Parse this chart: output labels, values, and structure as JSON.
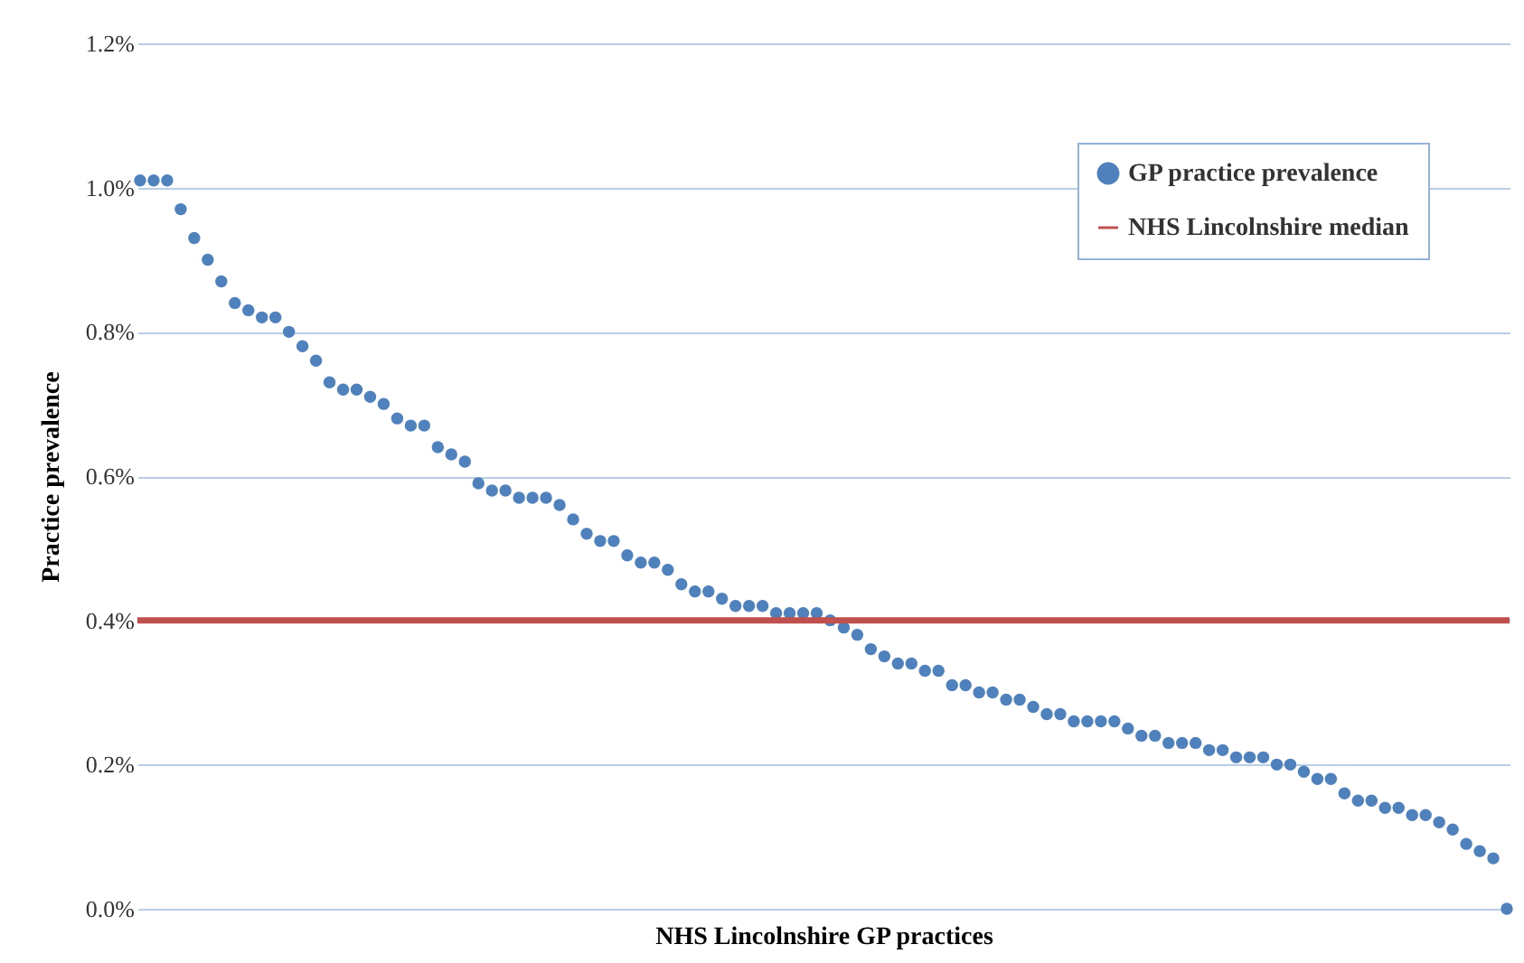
{
  "chart_data": {
    "type": "scatter",
    "xlabel": "NHS Lincolnshire GP practices",
    "ylabel": "Practice prevalence",
    "categories": [
      null,
      null,
      null,
      null,
      null,
      null,
      null,
      null,
      null,
      null,
      null,
      null,
      null,
      null,
      null,
      null,
      null,
      null,
      null,
      null,
      null,
      null,
      null,
      null,
      null,
      null,
      null,
      null,
      null,
      null,
      null,
      null,
      null,
      null,
      null,
      null,
      null,
      null,
      null,
      null,
      null,
      null,
      null,
      null,
      null,
      null,
      null,
      null,
      null,
      null,
      null,
      null,
      null,
      null,
      null,
      null,
      null,
      null,
      null,
      null,
      null,
      null,
      null,
      null,
      null,
      null,
      null,
      null,
      null,
      null,
      null,
      null,
      null,
      null,
      null,
      null,
      null,
      null,
      null,
      null,
      null,
      null,
      null,
      null,
      null,
      null,
      null,
      null,
      null,
      null,
      null,
      null,
      null,
      null,
      null,
      null,
      null,
      null,
      null,
      null,
      null,
      null
    ],
    "series": [
      {
        "name": "GP practice prevalence",
        "color": "#4f81bd",
        "values": [
          1.01,
          1.01,
          1.01,
          0.97,
          0.93,
          0.9,
          0.87,
          0.84,
          0.83,
          0.82,
          0.82,
          0.8,
          0.78,
          0.76,
          0.73,
          0.72,
          0.72,
          0.71,
          0.7,
          0.68,
          0.67,
          0.67,
          0.64,
          0.63,
          0.62,
          0.59,
          0.58,
          0.58,
          0.57,
          0.57,
          0.57,
          0.56,
          0.54,
          0.52,
          0.51,
          0.51,
          0.49,
          0.48,
          0.48,
          0.47,
          0.45,
          0.44,
          0.44,
          0.43,
          0.42,
          0.42,
          0.42,
          0.41,
          0.41,
          0.41,
          0.41,
          0.4,
          0.39,
          0.38,
          0.36,
          0.35,
          0.34,
          0.34,
          0.33,
          0.33,
          0.31,
          0.31,
          0.3,
          0.3,
          0.29,
          0.29,
          0.28,
          0.27,
          0.27,
          0.26,
          0.26,
          0.26,
          0.26,
          0.25,
          0.24,
          0.24,
          0.23,
          0.23,
          0.23,
          0.22,
          0.22,
          0.21,
          0.21,
          0.21,
          0.2,
          0.2,
          0.19,
          0.18,
          0.18,
          0.16,
          0.15,
          0.15,
          0.14,
          0.14,
          0.13,
          0.13,
          0.12,
          0.11,
          0.09,
          0.08,
          0.07,
          0.0
        ]
      }
    ],
    "ref_lines": [
      {
        "axis": "y",
        "value": 0.4,
        "label": "NHS Lincolnshire median",
        "color": "#c0504d"
      }
    ],
    "ylim": [
      0,
      1.2
    ],
    "yticks": [
      {
        "value": 0,
        "label": "0.0%"
      },
      {
        "value": 0.2,
        "label": "0.2%"
      },
      {
        "value": 0.4,
        "label": "0.4%"
      },
      {
        "value": 0.6,
        "label": "0.6%"
      },
      {
        "value": 0.8,
        "label": "0.8%"
      },
      {
        "value": 1.0,
        "label": "1.0%"
      },
      {
        "value": 1.2,
        "label": "1.2%"
      }
    ],
    "grid": "y",
    "legend": "top right",
    "marker": "circle",
    "tick_labels": "y"
  }
}
